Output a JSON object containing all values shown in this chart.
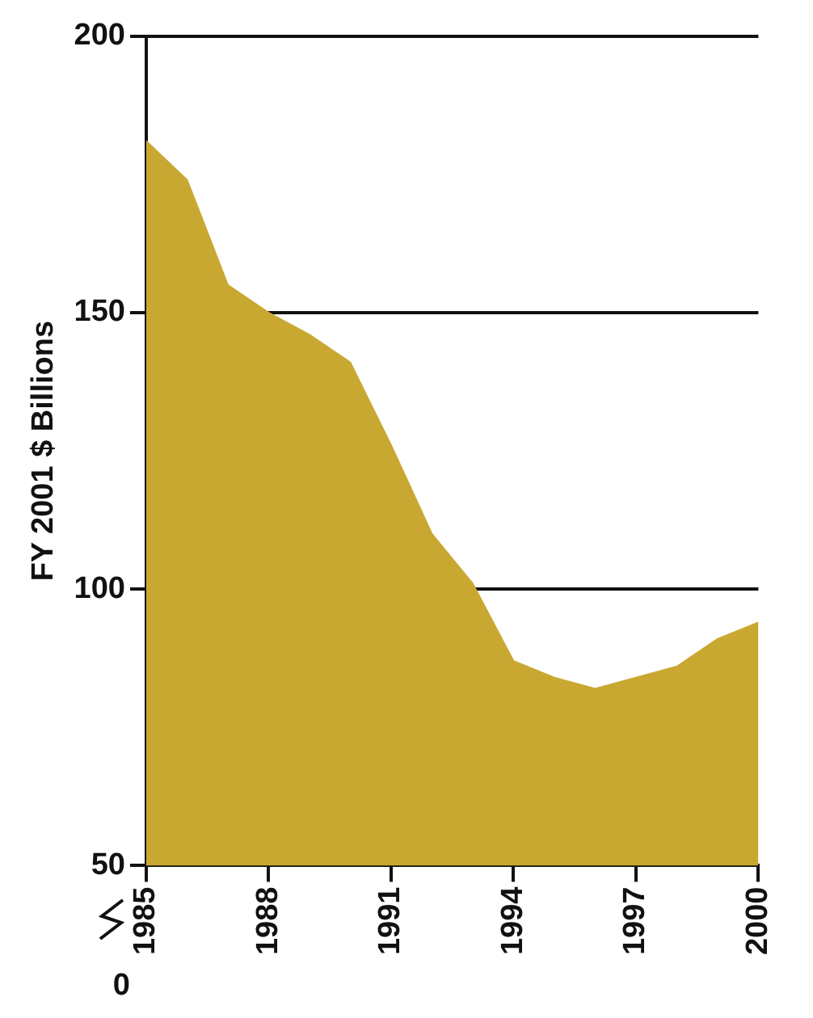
{
  "chart_data": {
    "type": "area",
    "ylabel": "FY 2001 $ Billions",
    "x": [
      1985,
      1986,
      1987,
      1988,
      1989,
      1990,
      1991,
      1992,
      1993,
      1994,
      1995,
      1996,
      1997,
      1998,
      1999,
      2000
    ],
    "values": [
      181,
      174,
      155,
      150,
      146,
      141,
      126,
      110,
      101,
      87,
      84,
      82,
      84,
      86,
      91,
      94
    ],
    "color": "#c9a832",
    "xlim": [
      1985,
      2000
    ],
    "xticks": [
      1985,
      1988,
      1991,
      1994,
      1997,
      2000
    ],
    "ylim": [
      50,
      200
    ],
    "yticks": [
      50,
      100,
      150,
      200
    ],
    "grid": "y",
    "annotations": [
      "0"
    ]
  }
}
